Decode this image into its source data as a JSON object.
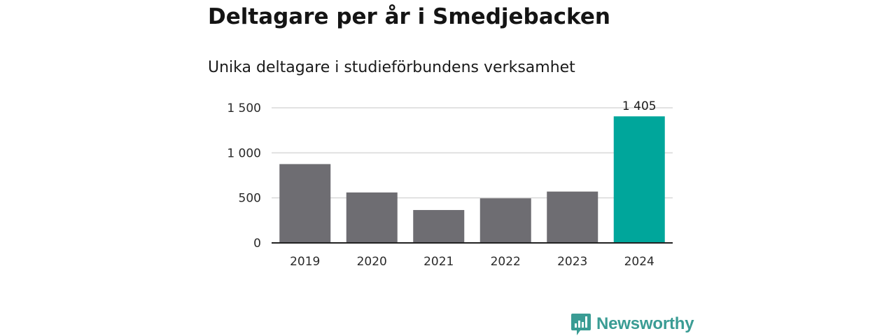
{
  "chart_data": {
    "type": "bar",
    "title": "Deltagare per år i Smedjebacken",
    "subtitle": "Unika deltagare i studieförbundens verksamhet",
    "categories": [
      "2019",
      "2020",
      "2021",
      "2022",
      "2023",
      "2024"
    ],
    "values": [
      875,
      560,
      365,
      495,
      570,
      1405
    ],
    "highlight_index": 5,
    "highlight_label": "1 405",
    "ylim": [
      0,
      1500
    ],
    "yticks": [
      0,
      500,
      1000,
      1500
    ],
    "ytick_labels": [
      "0",
      "500",
      "1 000",
      "1 500"
    ],
    "grid": true,
    "legend": "none",
    "colors": {
      "default": "#6e6d72",
      "highlight": "#00a69b",
      "grid": "#d9d9d9",
      "axis": "#222222"
    }
  },
  "brand": {
    "name": "Newsworthy",
    "icon": "newsworthy-logo-icon",
    "color": "#3a9c94"
  }
}
